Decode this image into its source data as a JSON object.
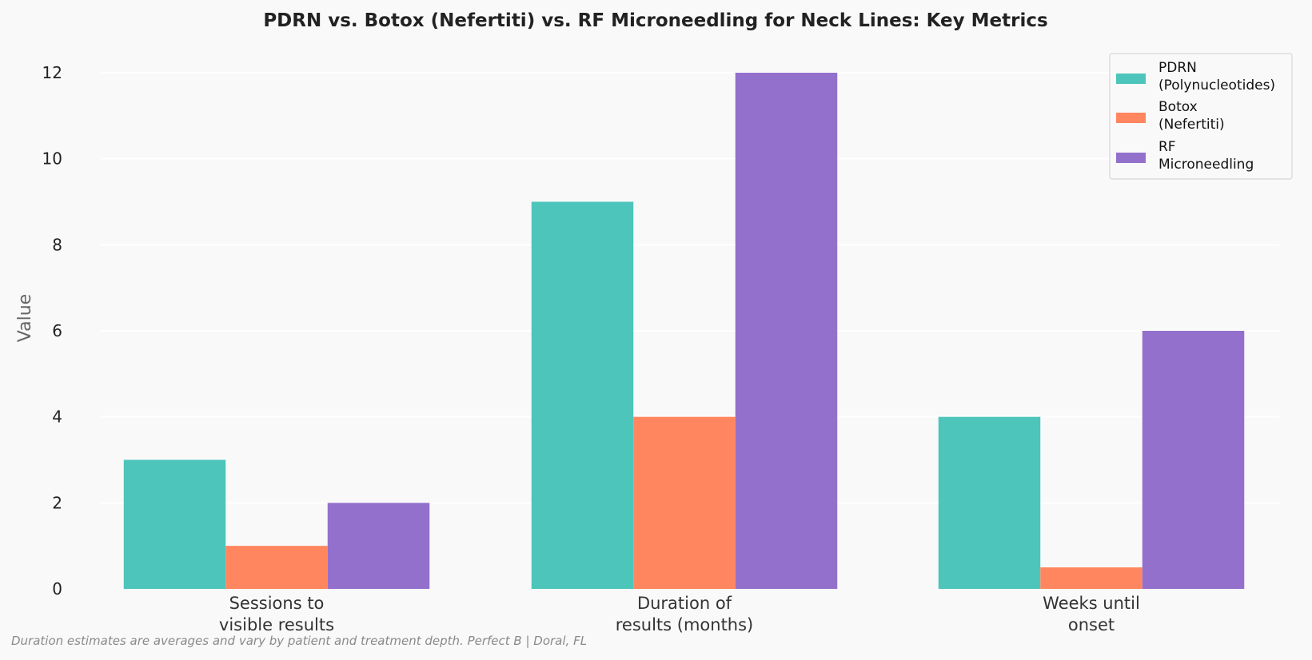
{
  "chart_data": {
    "type": "bar",
    "title": "PDRN vs. Botox (Nefertiti) vs. RF Microneedling for Neck Lines: Key Metrics",
    "ylabel": "Value",
    "xlabel": "",
    "ylim": [
      0,
      12.5
    ],
    "yticks": [
      "0",
      "2",
      "4",
      "6",
      "8",
      "10",
      "12"
    ],
    "ytick_values": [
      0,
      2,
      4,
      6,
      8,
      10,
      12
    ],
    "grid": true,
    "legend_position": "top-right",
    "categories": [
      [
        "Sessions to",
        "visible results"
      ],
      [
        "Duration of",
        "results (months)"
      ],
      [
        "Weeks until",
        "onset"
      ]
    ],
    "series": [
      {
        "name": [
          "PDRN",
          "(Polynucleotides)"
        ],
        "color": "#4dc5bb",
        "values": [
          3,
          9,
          4
        ]
      },
      {
        "name": [
          "Botox",
          "(Nefertiti)"
        ],
        "color": "#ff865f",
        "values": [
          1,
          4,
          0.5
        ]
      },
      {
        "name": [
          "RF",
          "Microneedling"
        ],
        "color": "#9370cc",
        "values": [
          2,
          12,
          6
        ]
      }
    ]
  },
  "footnote": "Duration estimates are averages and vary by patient and treatment depth. Perfect B | Doral, FL"
}
